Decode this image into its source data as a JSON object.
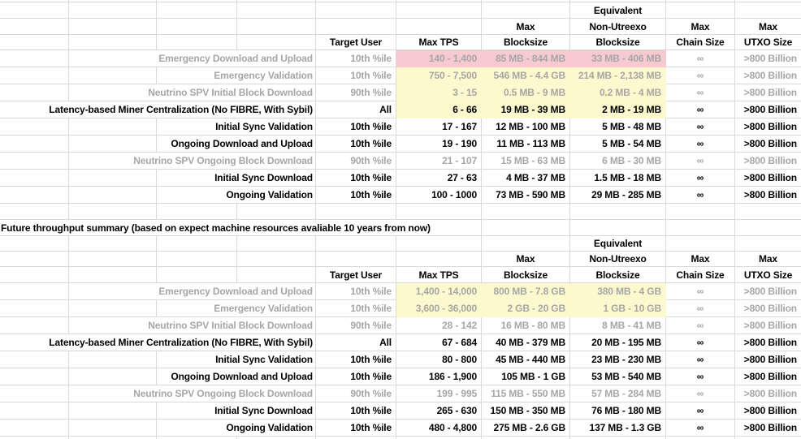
{
  "headers": {
    "equivalent": "Equivalent",
    "max_blocksize_top": "Max",
    "non_utreexo": "Non-Utreexo",
    "max_chain_top": "Max",
    "max_utxo_top": "Max",
    "target_user": "Target User",
    "max_tps": "Max TPS",
    "blocksize": "Blocksize",
    "non_utreexo_blocksize": "Blocksize",
    "chain_size": "Chain Size",
    "utxo_size": "UTXO Size"
  },
  "colors": {
    "highlight_pink": "#f7cad1",
    "highlight_yellow": "#fcf9ce",
    "gridline": "#d9d9d9",
    "muted_text": "#a6a6a6",
    "text": "#000000"
  },
  "tables": [
    {
      "rows": [
        {
          "label": "Emergency Download and Upload",
          "target_user": "10th %ile",
          "max_tps": "140 - 1,400",
          "max_blocksize": "85 MB - 844 MB",
          "non_utreexo_blocksize": "33 MB - 406 MB",
          "max_chain_size": "∞",
          "max_utxo_size": ">800 Billion",
          "highlight": "pink",
          "emphasis": "gray"
        },
        {
          "label": "Emergency Validation",
          "target_user": "10th %ile",
          "max_tps": "750 - 7,500",
          "max_blocksize": "546 MB - 4.4 GB",
          "non_utreexo_blocksize": "214 MB - 2,138 MB",
          "max_chain_size": "∞",
          "max_utxo_size": ">800 Billion",
          "highlight": "yellow",
          "emphasis": "gray"
        },
        {
          "label": "Neutrino SPV Initial Block Download",
          "target_user": "90th %ile",
          "max_tps": "3 - 15",
          "max_blocksize": "0.5 MB - 9 MB",
          "non_utreexo_blocksize": "0.2 MB - 4 MB",
          "max_chain_size": "∞",
          "max_utxo_size": ">800 Billion",
          "highlight": "yellow",
          "emphasis": "gray"
        },
        {
          "label": "Latency-based Miner Centralization (No FIBRE, With Sybil)",
          "target_user": "All",
          "max_tps": "6 - 66",
          "max_blocksize": "19 MB - 39 MB",
          "non_utreexo_blocksize": "2 MB - 19 MB",
          "max_chain_size": "∞",
          "max_utxo_size": ">800 Billion",
          "highlight": "yellow",
          "emphasis": "black"
        },
        {
          "label": "Initial Sync Validation",
          "target_user": "10th %ile",
          "max_tps": "17 - 167",
          "max_blocksize": "12 MB - 100 MB",
          "non_utreexo_blocksize": "5 MB - 48 MB",
          "max_chain_size": "∞",
          "max_utxo_size": ">800 Billion",
          "highlight": null,
          "emphasis": "black"
        },
        {
          "label": "Ongoing Download and Upload",
          "target_user": "10th %ile",
          "max_tps": "19 - 190",
          "max_blocksize": "11 MB - 113 MB",
          "non_utreexo_blocksize": "5 MB - 54 MB",
          "max_chain_size": "∞",
          "max_utxo_size": ">800 Billion",
          "highlight": null,
          "emphasis": "black"
        },
        {
          "label": "Neutrino SPV Ongoing Block Download",
          "target_user": "90th %ile",
          "max_tps": "21 - 107",
          "max_blocksize": "15 MB - 63 MB",
          "non_utreexo_blocksize": "6 MB - 30 MB",
          "max_chain_size": "∞",
          "max_utxo_size": ">800 Billion",
          "highlight": null,
          "emphasis": "gray"
        },
        {
          "label": "Initial Sync Download",
          "target_user": "10th %ile",
          "max_tps": "27 - 63",
          "max_blocksize": "4 MB - 37 MB",
          "non_utreexo_blocksize": "1.5 MB - 18 MB",
          "max_chain_size": "∞",
          "max_utxo_size": ">800 Billion",
          "highlight": null,
          "emphasis": "black"
        },
        {
          "label": "Ongoing Validation",
          "target_user": "10th %ile",
          "max_tps": "100 - 1000",
          "max_blocksize": "73 MB - 590 MB",
          "non_utreexo_blocksize": "29 MB - 285 MB",
          "max_chain_size": "∞",
          "max_utxo_size": ">800 Billion",
          "highlight": null,
          "emphasis": "black"
        }
      ]
    },
    {
      "title": "Future throughput summary (based on expect machine resources avaliable 10 years from now)",
      "rows": [
        {
          "label": "Emergency Download and Upload",
          "target_user": "10th %ile",
          "max_tps": "1,400 - 14,000",
          "max_blocksize": "800 MB - 7.8 GB",
          "non_utreexo_blocksize": "380 MB - 4 GB",
          "max_chain_size": "∞",
          "max_utxo_size": ">800 Billion",
          "highlight": "yellow",
          "emphasis": "gray"
        },
        {
          "label": "Emergency Validation",
          "target_user": "10th %ile",
          "max_tps": "3,600 - 36,000",
          "max_blocksize": "2 GB - 20 GB",
          "non_utreexo_blocksize": "1 GB - 10 GB",
          "max_chain_size": "∞",
          "max_utxo_size": ">800 Billion",
          "highlight": "yellow",
          "emphasis": "gray"
        },
        {
          "label": "Neutrino SPV Initial Block Download",
          "target_user": "90th %ile",
          "max_tps": "28 - 142",
          "max_blocksize": "16 MB - 80 MB",
          "non_utreexo_blocksize": "8 MB - 41 MB",
          "max_chain_size": "∞",
          "max_utxo_size": ">800 Billion",
          "highlight": null,
          "emphasis": "gray"
        },
        {
          "label": "Latency-based Miner Centralization (No FIBRE, With Sybil)",
          "target_user": "All",
          "max_tps": "67 - 684",
          "max_blocksize": "40 MB - 379 MB",
          "non_utreexo_blocksize": "20 MB - 195 MB",
          "max_chain_size": "∞",
          "max_utxo_size": ">800 Billion",
          "highlight": null,
          "emphasis": "black"
        },
        {
          "label": "Initial Sync Validation",
          "target_user": "10th %ile",
          "max_tps": "80 - 800",
          "max_blocksize": "45 MB - 440 MB",
          "non_utreexo_blocksize": "23 MB - 230 MB",
          "max_chain_size": "∞",
          "max_utxo_size": ">800 Billion",
          "highlight": null,
          "emphasis": "black"
        },
        {
          "label": "Ongoing Download and Upload",
          "target_user": "10th %ile",
          "max_tps": "186 - 1,900",
          "max_blocksize": "105 MB - 1 GB",
          "non_utreexo_blocksize": "53 MB - 540 MB",
          "max_chain_size": "∞",
          "max_utxo_size": ">800 Billion",
          "highlight": null,
          "emphasis": "black"
        },
        {
          "label": "Neutrino SPV Ongoing Block Download",
          "target_user": "90th %ile",
          "max_tps": "199 - 995",
          "max_blocksize": "115 MB - 550 MB",
          "non_utreexo_blocksize": "57 MB - 284 MB",
          "max_chain_size": "∞",
          "max_utxo_size": ">800 Billion",
          "highlight": null,
          "emphasis": "gray"
        },
        {
          "label": "Initial Sync Download",
          "target_user": "10th %ile",
          "max_tps": "265 - 630",
          "max_blocksize": "150 MB - 350 MB",
          "non_utreexo_blocksize": "76 MB - 180 MB",
          "max_chain_size": "∞",
          "max_utxo_size": ">800 Billion",
          "highlight": null,
          "emphasis": "black"
        },
        {
          "label": "Ongoing Validation",
          "target_user": "10th %ile",
          "max_tps": "480 - 4,800",
          "max_blocksize": "275 MB - 2.6 GB",
          "non_utreexo_blocksize": "137 MB - 1.3 GB",
          "max_chain_size": "∞",
          "max_utxo_size": ">800 Billion",
          "highlight": null,
          "emphasis": "black"
        }
      ]
    }
  ]
}
